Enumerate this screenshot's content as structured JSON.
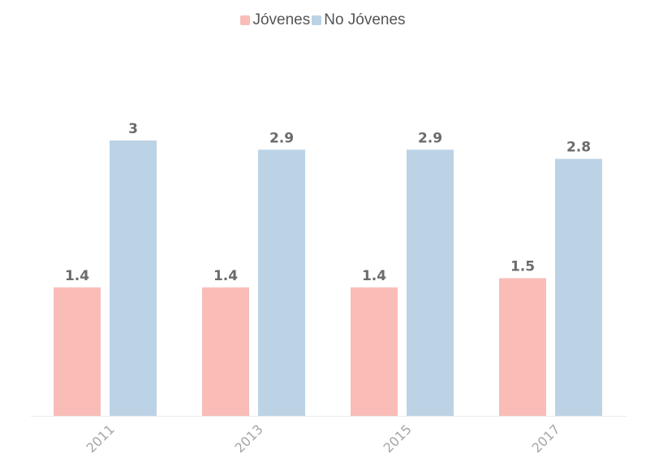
{
  "chart_data": {
    "type": "bar",
    "categories": [
      "2011",
      "2013",
      "2015",
      "2017"
    ],
    "series": [
      {
        "name": "Jóvenes",
        "values": [
          1.4,
          1.4,
          1.4,
          1.5
        ],
        "color": "#f9bcb7"
      },
      {
        "name": "No Jóvenes",
        "values": [
          3,
          2.9,
          2.9,
          2.8
        ],
        "color": "#bcd3e6"
      }
    ],
    "value_labels": {
      "Jóvenes": [
        "1.4",
        "1.4",
        "1.4",
        "1.5"
      ],
      "No Jóvenes": [
        "3",
        "2.9",
        "2.9",
        "2.8"
      ]
    },
    "ylim": [
      0,
      3
    ],
    "grid": false,
    "legend_position": "top-center"
  }
}
